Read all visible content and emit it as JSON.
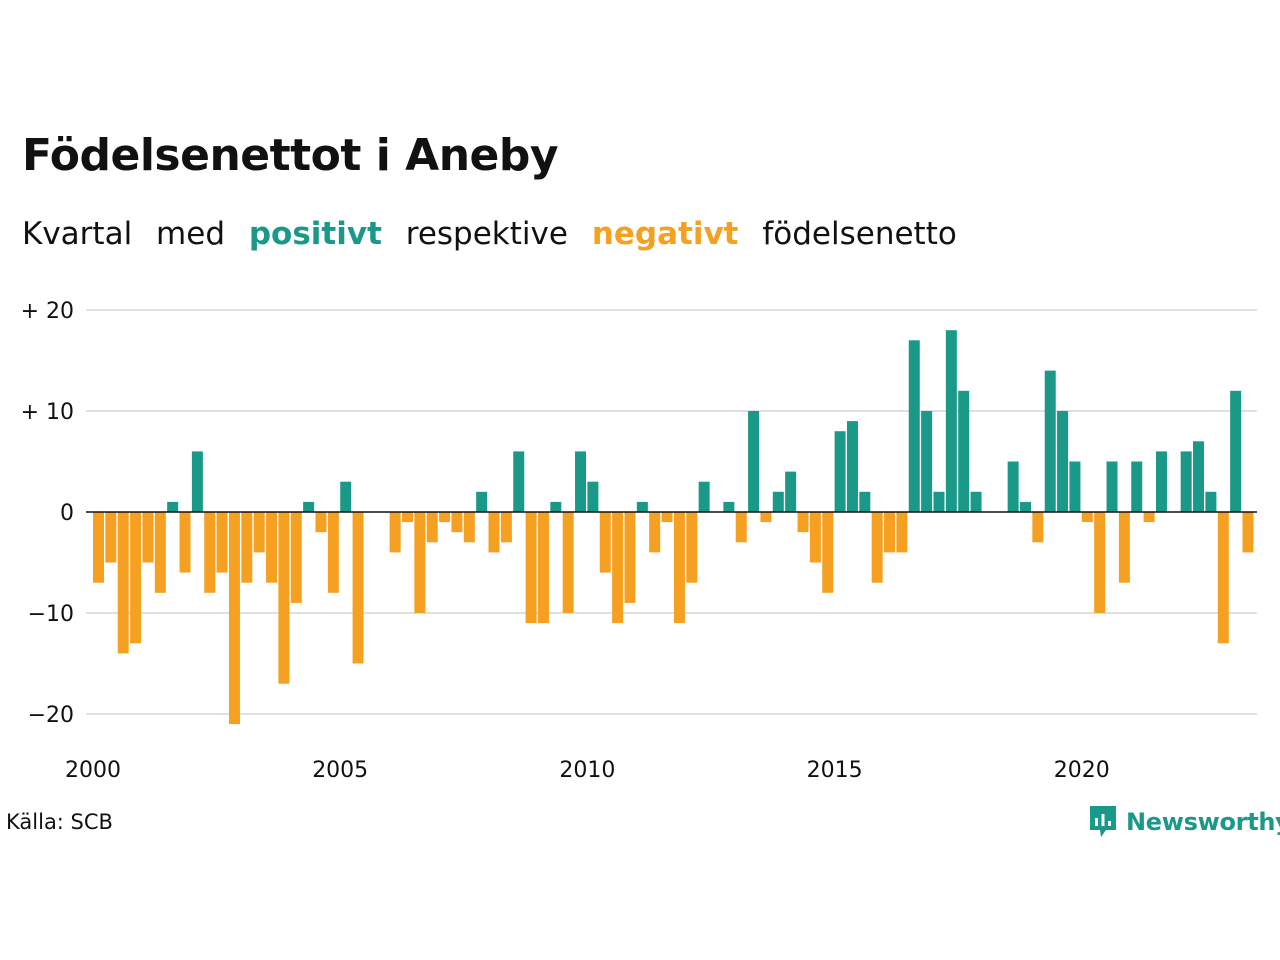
{
  "header": {
    "title": "Födelsenettot i Aneby",
    "subtitle_parts": {
      "p1": "Kvartal",
      "p2": "med",
      "positive": "positivt",
      "p3": "respektive",
      "negative": "negativt",
      "p4": "födelsenetto"
    }
  },
  "footer": {
    "source": "Källa: SCB",
    "brand": "Newsworthy"
  },
  "colors": {
    "positive": "#1a9988",
    "negative": "#f5a021",
    "grid": "#e0e0e0",
    "zero_line": "#111111"
  },
  "chart_data": {
    "type": "bar",
    "title": "Födelsenettot i Aneby",
    "subtitle": "Kvartal med positivt respektive negativt födelsenetto",
    "xlabel": "",
    "ylabel": "",
    "x_ticks": [
      "2000",
      "2005",
      "2010",
      "2015",
      "2020"
    ],
    "y_ticks": [
      {
        "value": 20,
        "label": "+ 20"
      },
      {
        "value": 10,
        "label": "+ 10"
      },
      {
        "value": 0,
        "label": "0"
      },
      {
        "value": -10,
        "label": "−10"
      },
      {
        "value": -20,
        "label": "−20"
      }
    ],
    "ylim": [
      -21,
      20
    ],
    "grid": true,
    "start_year": 2000,
    "categories": [
      "2000 K1",
      "2000 K2",
      "2000 K3",
      "2000 K4",
      "2001 K1",
      "2001 K2",
      "2001 K3",
      "2001 K4",
      "2002 K1",
      "2002 K2",
      "2002 K3",
      "2002 K4",
      "2003 K1",
      "2003 K2",
      "2003 K3",
      "2003 K4",
      "2004 K1",
      "2004 K2",
      "2004 K3",
      "2004 K4",
      "2005 K1",
      "2005 K2",
      "2005 K3",
      "2005 K4",
      "2006 K1",
      "2006 K2",
      "2006 K3",
      "2006 K4",
      "2007 K1",
      "2007 K2",
      "2007 K3",
      "2007 K4",
      "2008 K1",
      "2008 K2",
      "2008 K3",
      "2008 K4",
      "2009 K1",
      "2009 K2",
      "2009 K3",
      "2009 K4",
      "2010 K1",
      "2010 K2",
      "2010 K3",
      "2010 K4",
      "2011 K1",
      "2011 K2",
      "2011 K3",
      "2011 K4",
      "2012 K1",
      "2012 K2",
      "2012 K3",
      "2012 K4",
      "2013 K1",
      "2013 K2",
      "2013 K3",
      "2013 K4",
      "2014 K1",
      "2014 K2",
      "2014 K3",
      "2014 K4",
      "2015 K1",
      "2015 K2",
      "2015 K3",
      "2015 K4",
      "2016 K1",
      "2016 K2",
      "2016 K3",
      "2016 K4",
      "2017 K1",
      "2017 K2",
      "2017 K3",
      "2017 K4",
      "2018 K1",
      "2018 K2",
      "2018 K3",
      "2018 K4",
      "2019 K1",
      "2019 K2",
      "2019 K3",
      "2019 K4",
      "2020 K1",
      "2020 K2",
      "2020 K3",
      "2020 K4",
      "2021 K1",
      "2021 K2",
      "2021 K3",
      "2021 K4",
      "2022 K1",
      "2022 K2",
      "2022 K3",
      "2022 K4",
      "2023 K1",
      "2023 K2",
      "2023 K3",
      "2023 K4"
    ],
    "values": [
      -7,
      -5,
      -14,
      -13,
      -5,
      -8,
      1,
      -6,
      6,
      -8,
      -6,
      -21,
      -7,
      -4,
      -7,
      -17,
      -9,
      1,
      -2,
      -8,
      3,
      -15,
      0,
      0,
      -4,
      -1,
      -10,
      -3,
      -1,
      -2,
      -3,
      2,
      -4,
      -3,
      6,
      -11,
      -11,
      1,
      -10,
      6,
      3,
      -6,
      -11,
      -9,
      1,
      -4,
      -1,
      -11,
      -7,
      3,
      0,
      1,
      -3,
      10,
      -1,
      2,
      4,
      -2,
      -5,
      -8,
      8,
      9,
      2,
      -7,
      -4,
      -4,
      17,
      10,
      2,
      18,
      12,
      2,
      0,
      0,
      5,
      1,
      -3,
      14,
      10,
      5,
      -1,
      -10,
      5,
      -7,
      5,
      -1,
      6,
      0,
      6,
      7,
      2,
      -13,
      12,
      -4,
      0,
      0
    ]
  }
}
